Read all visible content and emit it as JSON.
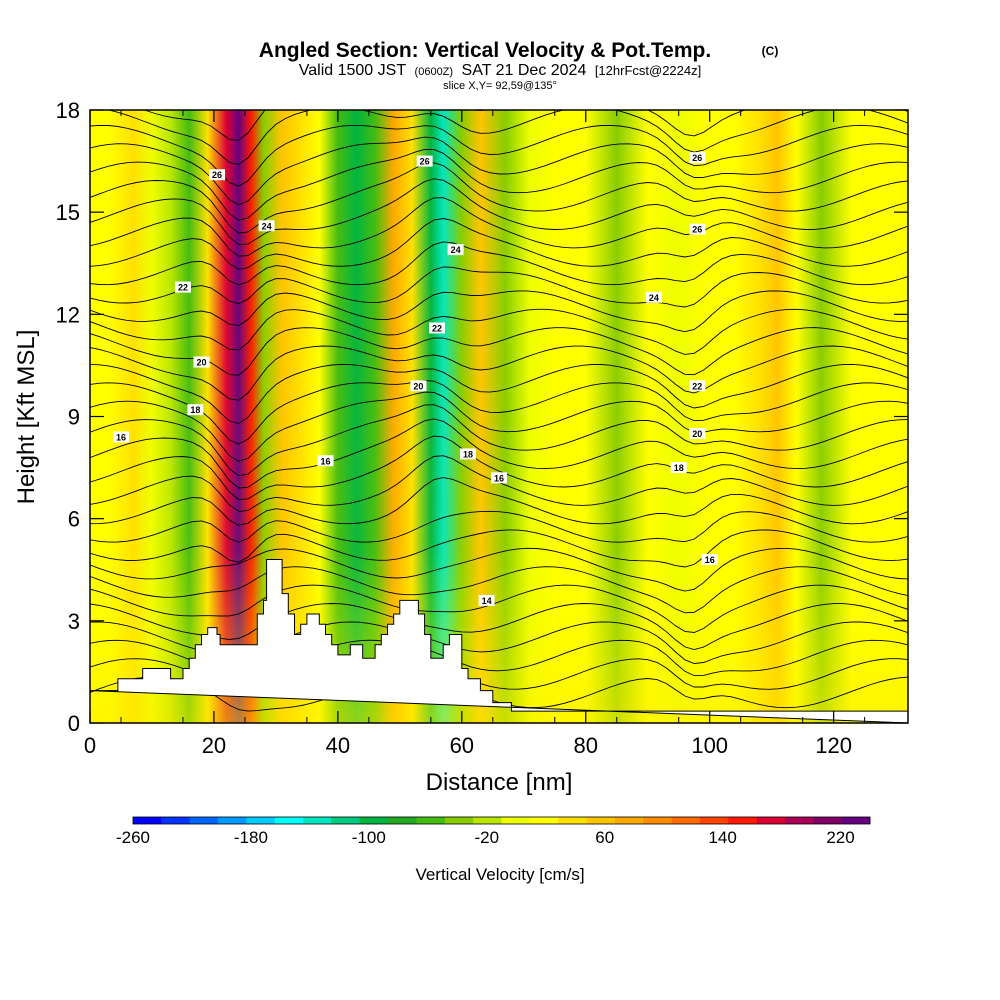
{
  "chart_data": {
    "type": "heatmap",
    "title": {
      "main": "Angled Section: Vertical Velocity & Pot.Temp.",
      "main_tag": "(C)",
      "valid_pre": "Valid 1500 JST",
      "valid_tag": "(0600Z)",
      "valid_date": "SAT 21 Dec 2024",
      "fcst_tag": "[12hrFcst@2224z]",
      "slice": "slice X,Y= 92,59@135°"
    },
    "xlabel": "Distance [nm]",
    "ylabel": "Height [Kft MSL]",
    "xlim": [
      0,
      132
    ],
    "ylim": [
      0,
      18
    ],
    "x_ticks": [
      "0",
      "20",
      "40",
      "60",
      "80",
      "100",
      "120"
    ],
    "y_ticks": [
      "0",
      "3",
      "6",
      "9",
      "12",
      "15",
      "18"
    ],
    "colorbar": {
      "label": "Vertical Velocity [cm/s]",
      "tick_labels": [
        "-260",
        "-180",
        "-100",
        "-20",
        "60",
        "140",
        "220"
      ],
      "tick_values": [
        -260,
        -180,
        -100,
        -20,
        60,
        140,
        220
      ],
      "range": [
        -260,
        240
      ],
      "colors": [
        "#0000ff",
        "#0033ff",
        "#0066ff",
        "#0099ff",
        "#00ccff",
        "#00ffff",
        "#00e6c0",
        "#00cc80",
        "#00b440",
        "#22aa22",
        "#44bb11",
        "#88cc00",
        "#bbe600",
        "#eeff00",
        "#ffff00",
        "#ffe000",
        "#ffc400",
        "#ffa800",
        "#ff8c00",
        "#ff6a00",
        "#ff4400",
        "#ff1a00",
        "#dd0033",
        "#aa0055",
        "#800066",
        "#660080"
      ]
    },
    "bands": [
      {
        "x": 3,
        "v": 10
      },
      {
        "x": 7,
        "v": 35
      },
      {
        "x": 10,
        "v": 5
      },
      {
        "x": 13,
        "v": -25
      },
      {
        "x": 16,
        "v": -60
      },
      {
        "x": 19,
        "v": 40
      },
      {
        "x": 22,
        "v": 180
      },
      {
        "x": 24,
        "v": 240
      },
      {
        "x": 26,
        "v": 150
      },
      {
        "x": 28,
        "v": -30
      },
      {
        "x": 31,
        "v": 55
      },
      {
        "x": 34,
        "v": 35
      },
      {
        "x": 37,
        "v": 10
      },
      {
        "x": 40,
        "v": -60
      },
      {
        "x": 43,
        "v": -100
      },
      {
        "x": 46,
        "v": -60
      },
      {
        "x": 49,
        "v": 70
      },
      {
        "x": 52,
        "v": 45
      },
      {
        "x": 55,
        "v": -90
      },
      {
        "x": 57,
        "v": -140
      },
      {
        "x": 60,
        "v": -40
      },
      {
        "x": 63,
        "v": 60
      },
      {
        "x": 67,
        "v": -35
      },
      {
        "x": 71,
        "v": 5
      },
      {
        "x": 75,
        "v": 20
      },
      {
        "x": 80,
        "v": 15
      },
      {
        "x": 85,
        "v": -35
      },
      {
        "x": 90,
        "v": 15
      },
      {
        "x": 95,
        "v": 5
      },
      {
        "x": 100,
        "v": 15
      },
      {
        "x": 104,
        "v": 20
      },
      {
        "x": 108,
        "v": 45
      },
      {
        "x": 111,
        "v": 55
      },
      {
        "x": 114,
        "v": 20
      },
      {
        "x": 118,
        "v": -35
      },
      {
        "x": 123,
        "v": 15
      },
      {
        "x": 128,
        "v": 10
      }
    ],
    "terrain": [
      [
        0,
        0.95
      ],
      [
        4.5,
        0.95
      ],
      [
        4.5,
        1.3
      ],
      [
        8.5,
        1.3
      ],
      [
        8.5,
        1.6
      ],
      [
        13,
        1.6
      ],
      [
        13,
        1.3
      ],
      [
        15,
        1.3
      ],
      [
        15,
        1.6
      ],
      [
        16,
        1.6
      ],
      [
        16,
        1.9
      ],
      [
        17,
        1.9
      ],
      [
        17,
        2.3
      ],
      [
        18,
        2.3
      ],
      [
        18,
        2.6
      ],
      [
        19,
        2.6
      ],
      [
        19,
        2.8
      ],
      [
        20.5,
        2.8
      ],
      [
        20.5,
        2.6
      ],
      [
        21,
        2.6
      ],
      [
        21,
        2.3
      ],
      [
        27,
        2.3
      ],
      [
        27,
        3.2
      ],
      [
        28,
        3.2
      ],
      [
        28,
        3.6
      ],
      [
        28.5,
        3.6
      ],
      [
        28.5,
        4.8
      ],
      [
        31,
        4.8
      ],
      [
        31,
        3.8
      ],
      [
        32,
        3.8
      ],
      [
        32,
        3.2
      ],
      [
        33,
        3.2
      ],
      [
        33,
        2.6
      ],
      [
        34,
        2.6
      ],
      [
        34,
        2.9
      ],
      [
        35,
        2.9
      ],
      [
        35,
        3.2
      ],
      [
        37,
        3.2
      ],
      [
        37,
        2.9
      ],
      [
        38,
        2.9
      ],
      [
        38,
        2.6
      ],
      [
        39,
        2.6
      ],
      [
        39,
        2.3
      ],
      [
        40,
        2.3
      ],
      [
        40,
        2.0
      ],
      [
        42,
        2.0
      ],
      [
        42,
        2.3
      ],
      [
        44,
        2.3
      ],
      [
        44,
        1.9
      ],
      [
        46,
        1.9
      ],
      [
        46,
        2.3
      ],
      [
        47,
        2.3
      ],
      [
        47,
        2.6
      ],
      [
        48,
        2.6
      ],
      [
        48,
        2.9
      ],
      [
        49,
        2.9
      ],
      [
        49,
        3.2
      ],
      [
        50,
        3.2
      ],
      [
        50,
        3.6
      ],
      [
        53,
        3.6
      ],
      [
        53,
        3.2
      ],
      [
        54,
        3.2
      ],
      [
        54,
        2.6
      ],
      [
        55,
        2.6
      ],
      [
        55,
        1.9
      ],
      [
        57,
        1.9
      ],
      [
        57,
        2.3
      ],
      [
        58,
        2.3
      ],
      [
        58,
        2.6
      ],
      [
        60,
        2.6
      ],
      [
        60,
        1.6
      ],
      [
        61,
        1.6
      ],
      [
        61,
        1.3
      ],
      [
        63,
        1.3
      ],
      [
        63,
        0.95
      ],
      [
        65,
        0.95
      ],
      [
        65,
        0.6
      ],
      [
        68,
        0.6
      ],
      [
        68,
        0.35
      ],
      [
        132,
        0.35
      ],
      [
        132,
        0
      ]
    ],
    "contour_labels": [
      {
        "text": "16",
        "x": 5,
        "y": 8.4
      },
      {
        "text": "18",
        "x": 17,
        "y": 9.2
      },
      {
        "text": "20",
        "x": 18,
        "y": 10.6
      },
      {
        "text": "22",
        "x": 15,
        "y": 12.8
      },
      {
        "text": "26",
        "x": 20.5,
        "y": 16.1
      },
      {
        "text": "24",
        "x": 28.5,
        "y": 14.6
      },
      {
        "text": "16",
        "x": 38,
        "y": 7.7
      },
      {
        "text": "26",
        "x": 54,
        "y": 16.5
      },
      {
        "text": "24",
        "x": 59,
        "y": 13.9
      },
      {
        "text": "22",
        "x": 56,
        "y": 11.6
      },
      {
        "text": "20",
        "x": 53,
        "y": 9.9
      },
      {
        "text": "18",
        "x": 61,
        "y": 7.9
      },
      {
        "text": "16",
        "x": 66,
        "y": 7.2
      },
      {
        "text": "14",
        "x": 64,
        "y": 3.6
      },
      {
        "text": "26",
        "x": 98,
        "y": 16.6
      },
      {
        "text": "26",
        "x": 98,
        "y": 14.5
      },
      {
        "text": "24",
        "x": 91,
        "y": 12.5
      },
      {
        "text": "22",
        "x": 98,
        "y": 9.9
      },
      {
        "text": "20",
        "x": 98,
        "y": 8.5
      },
      {
        "text": "18",
        "x": 95,
        "y": 7.5
      },
      {
        "text": "16",
        "x": 100,
        "y": 4.8
      }
    ]
  }
}
